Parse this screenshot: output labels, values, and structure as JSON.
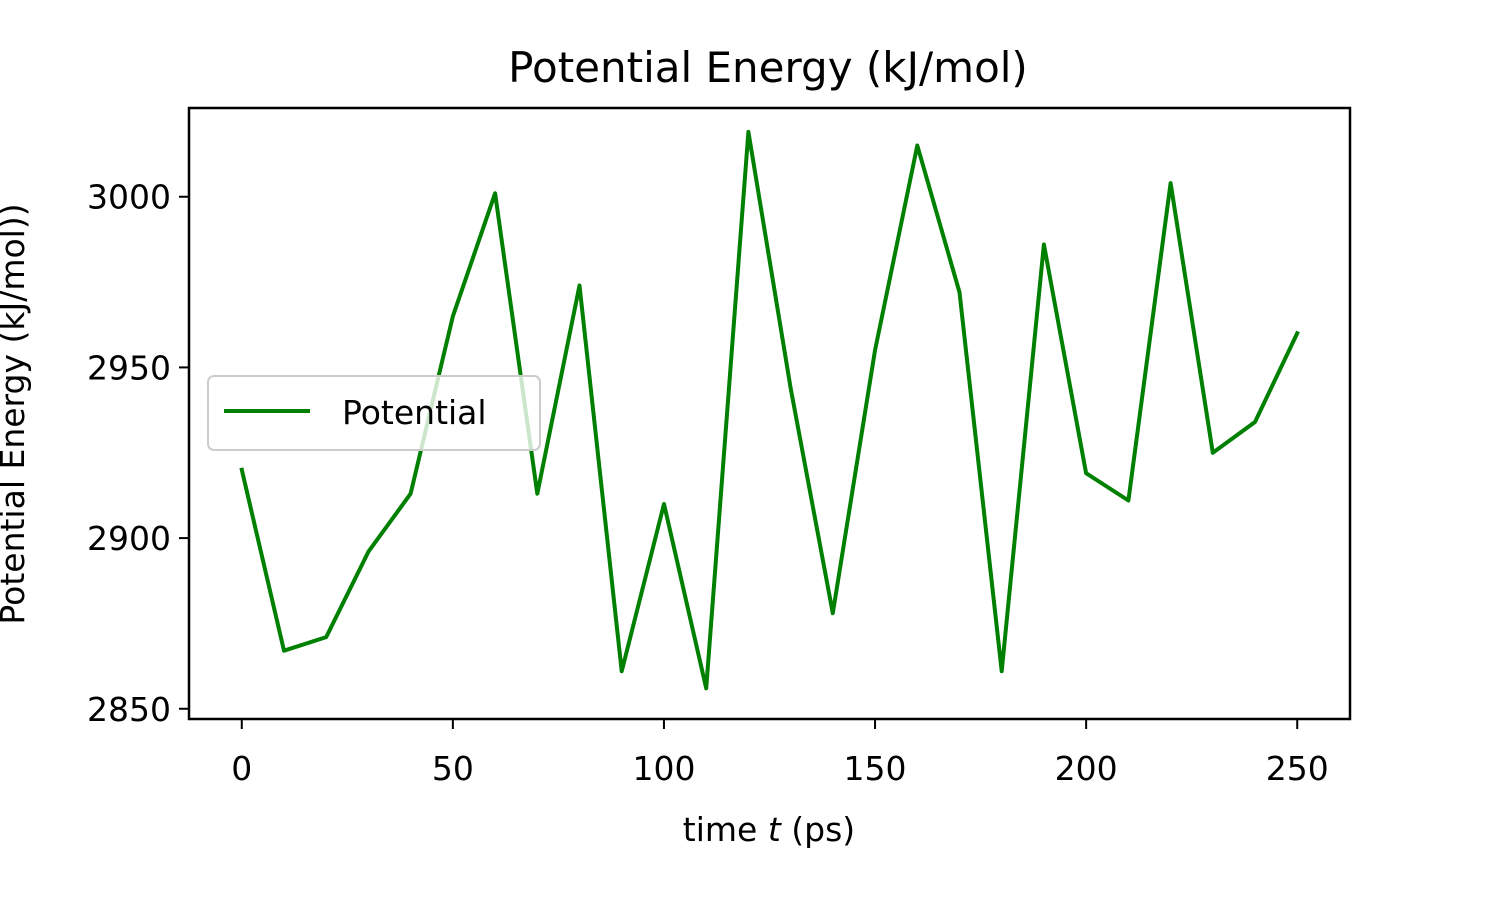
{
  "chart_data": {
    "type": "line",
    "title": "Potential Energy (kJ/mol)",
    "xlabel_prefix": "time ",
    "xlabel_var": "t",
    "xlabel_suffix": " (ps)",
    "ylabel": "Potential Energy (kJ/mol))",
    "xlim": [
      -12.5,
      262.5
    ],
    "ylim": [
      2847,
      3026
    ],
    "xticks": [
      0,
      50,
      100,
      150,
      200,
      250
    ],
    "yticks": [
      2850,
      2900,
      2950,
      3000
    ],
    "grid": false,
    "legend_position": "center-left",
    "series": [
      {
        "name": "Potential",
        "color": "#008000",
        "x": [
          0,
          10,
          20,
          30,
          40,
          50,
          60,
          70,
          80,
          90,
          100,
          110,
          120,
          130,
          140,
          150,
          160,
          170,
          180,
          190,
          200,
          210,
          220,
          230,
          240,
          250
        ],
        "y": [
          2920,
          2867,
          2871,
          2896,
          2913,
          2965,
          3001,
          2913,
          2974,
          2861,
          2910,
          2856,
          3019,
          2944,
          2878,
          2955,
          3015,
          2972,
          2861,
          2986,
          2919,
          2911,
          3004,
          2925,
          2934,
          2960
        ]
      }
    ]
  }
}
